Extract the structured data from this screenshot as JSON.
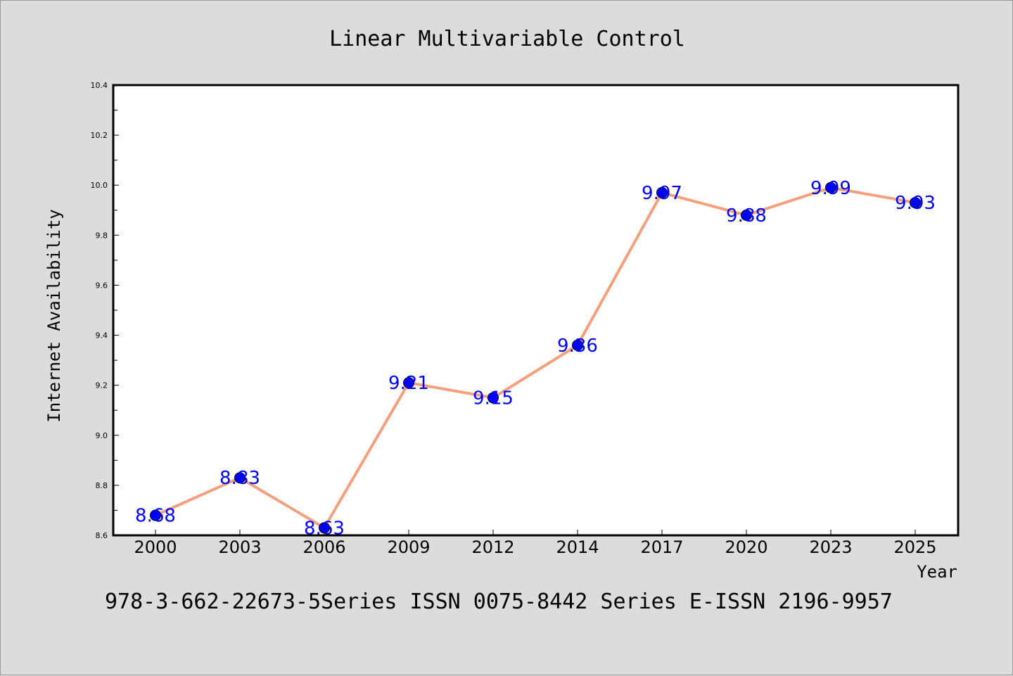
{
  "chart_data": {
    "type": "line",
    "title": "Linear Multivariable Control",
    "xlabel": "Year",
    "ylabel": "Internet Availability",
    "categories": [
      "2000",
      "2003",
      "2006",
      "2009",
      "2012",
      "2014",
      "2017",
      "2020",
      "2023",
      "2025"
    ],
    "series": [
      {
        "values": [
          8.68,
          8.83,
          8.63,
          9.21,
          9.15,
          9.36,
          9.97,
          9.88,
          9.99,
          9.93
        ],
        "labels": [
          "8.68",
          "8.83",
          "8.63",
          "9.21",
          "9.15",
          "9.36",
          "9.97",
          "9.88",
          "9.99",
          "9.93"
        ]
      }
    ],
    "ylim": [
      8.6,
      10.4
    ],
    "yticks": [
      "8.6",
      "8.8",
      "9.0",
      "9.2",
      "9.4",
      "9.6",
      "9.8",
      "10.0",
      "10.2",
      "10.4"
    ],
    "grid": false,
    "colors": {
      "line": "#f4a07c",
      "marker": "#0000ff",
      "label": "#0000ff",
      "plot_bg": "#ffffff",
      "page_bg": "#dcdcdc"
    }
  },
  "footer_text": "978-3-662-22673-5Series ISSN 0075-8442 Series E-ISSN 2196-9957"
}
